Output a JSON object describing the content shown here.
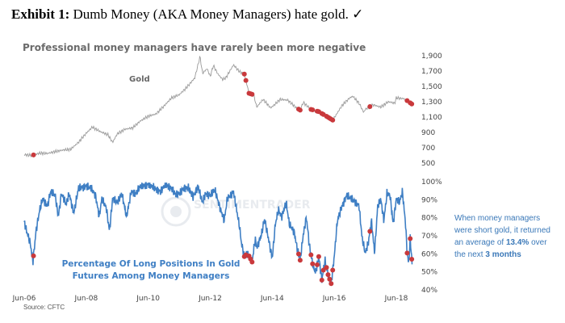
{
  "header": {
    "exhibit_label": "Exhibit 1:",
    "exhibit_text": "Dumb Money (AKA Money Managers) hate gold.",
    "check_mark": "✓"
  },
  "chart": {
    "title": "Professional money managers have rarely been more negative",
    "gold_label": "Gold",
    "position_label_line1": "Percentage Of Long Positions In Gold",
    "position_label_line2": "Futures Among Money Managers",
    "watermark": "SENTIMENTRADER",
    "source": "Source: CFTC",
    "annotation": {
      "line1": "When money managers",
      "line2_a": "were short gold, it returned",
      "line3_a": "an average of ",
      "line3_b": "13.4%",
      "line3_c": " over",
      "line4_a": "the next ",
      "line4_b": "3 months"
    }
  },
  "chart_data": {
    "type": "line",
    "title": "Professional money managers have rarely been more negative",
    "x_tick_labels": [
      "Jun-06",
      "Jun-08",
      "Jun-10",
      "Jun-12",
      "Jun-14",
      "Jun-16",
      "Jun-18"
    ],
    "x_range": [
      2006.0,
      2018.6
    ],
    "upper_axis": {
      "label": "Gold",
      "ylim": [
        500,
        1900
      ],
      "ticks": [
        "1,900",
        "1,700",
        "1,500",
        "1,300",
        "1,100",
        "900",
        "700",
        "500"
      ]
    },
    "lower_axis": {
      "label": "Percentage Of Long Positions In Gold Futures Among Money Managers",
      "ylim": [
        40,
        100
      ],
      "ticks": [
        "100%",
        "90%",
        "80%",
        "70%",
        "60%",
        "50%",
        "40%"
      ]
    },
    "series": [
      {
        "name": "Gold",
        "points": [
          [
            2006.0,
            600
          ],
          [
            2006.25,
            590
          ],
          [
            2006.5,
            620
          ],
          [
            2006.75,
            615
          ],
          [
            2007.0,
            640
          ],
          [
            2007.25,
            660
          ],
          [
            2007.5,
            670
          ],
          [
            2007.75,
            760
          ],
          [
            2008.0,
            880
          ],
          [
            2008.2,
            960
          ],
          [
            2008.45,
            900
          ],
          [
            2008.7,
            860
          ],
          [
            2008.85,
            760
          ],
          [
            2009.0,
            870
          ],
          [
            2009.25,
            930
          ],
          [
            2009.5,
            950
          ],
          [
            2009.75,
            1040
          ],
          [
            2010.0,
            1100
          ],
          [
            2010.25,
            1130
          ],
          [
            2010.5,
            1230
          ],
          [
            2010.75,
            1340
          ],
          [
            2011.0,
            1380
          ],
          [
            2011.25,
            1480
          ],
          [
            2011.5,
            1600
          ],
          [
            2011.6,
            1760
          ],
          [
            2011.67,
            1880
          ],
          [
            2011.75,
            1660
          ],
          [
            2011.9,
            1720
          ],
          [
            2012.0,
            1620
          ],
          [
            2012.1,
            1760
          ],
          [
            2012.25,
            1650
          ],
          [
            2012.4,
            1580
          ],
          [
            2012.5,
            1600
          ],
          [
            2012.75,
            1770
          ],
          [
            2012.95,
            1680
          ],
          [
            2013.1,
            1650
          ],
          [
            2013.25,
            1400
          ],
          [
            2013.4,
            1380
          ],
          [
            2013.5,
            1220
          ],
          [
            2013.7,
            1320
          ],
          [
            2013.95,
            1210
          ],
          [
            2014.1,
            1260
          ],
          [
            2014.25,
            1320
          ],
          [
            2014.5,
            1310
          ],
          [
            2014.75,
            1220
          ],
          [
            2014.9,
            1180
          ],
          [
            2015.0,
            1280
          ],
          [
            2015.25,
            1190
          ],
          [
            2015.5,
            1160
          ],
          [
            2015.75,
            1100
          ],
          [
            2015.95,
            1050
          ],
          [
            2016.0,
            1080
          ],
          [
            2016.25,
            1240
          ],
          [
            2016.5,
            1340
          ],
          [
            2016.6,
            1360
          ],
          [
            2016.8,
            1270
          ],
          [
            2016.95,
            1150
          ],
          [
            2017.0,
            1190
          ],
          [
            2017.25,
            1250
          ],
          [
            2017.5,
            1220
          ],
          [
            2017.75,
            1290
          ],
          [
            2017.95,
            1270
          ],
          [
            2018.0,
            1340
          ],
          [
            2018.25,
            1330
          ],
          [
            2018.4,
            1290
          ],
          [
            2018.5,
            1260
          ]
        ]
      },
      {
        "name": "Percentage Of Long Positions In Gold Futures Among Money Managers",
        "points": [
          [
            2006.0,
            77
          ],
          [
            2006.08,
            72
          ],
          [
            2006.2,
            65
          ],
          [
            2006.28,
            55
          ],
          [
            2006.38,
            72
          ],
          [
            2006.5,
            84
          ],
          [
            2006.6,
            90
          ],
          [
            2006.75,
            86
          ],
          [
            2006.85,
            94
          ],
          [
            2007.0,
            92
          ],
          [
            2007.1,
            80
          ],
          [
            2007.2,
            93
          ],
          [
            2007.35,
            87
          ],
          [
            2007.45,
            93
          ],
          [
            2007.6,
            82
          ],
          [
            2007.75,
            96
          ],
          [
            2008.0,
            97
          ],
          [
            2008.15,
            96
          ],
          [
            2008.3,
            92
          ],
          [
            2008.42,
            80
          ],
          [
            2008.5,
            90
          ],
          [
            2008.65,
            85
          ],
          [
            2008.75,
            72
          ],
          [
            2008.85,
            90
          ],
          [
            2009.0,
            88
          ],
          [
            2009.15,
            93
          ],
          [
            2009.3,
            80
          ],
          [
            2009.45,
            94
          ],
          [
            2009.6,
            93
          ],
          [
            2009.75,
            97
          ],
          [
            2010.0,
            98
          ],
          [
            2010.2,
            96
          ],
          [
            2010.4,
            94
          ],
          [
            2010.55,
            98
          ],
          [
            2010.75,
            96
          ],
          [
            2010.9,
            92
          ],
          [
            2011.0,
            93
          ],
          [
            2011.15,
            96
          ],
          [
            2011.3,
            96
          ],
          [
            2011.45,
            91
          ],
          [
            2011.6,
            97
          ],
          [
            2011.75,
            88
          ],
          [
            2011.85,
            93
          ],
          [
            2012.0,
            92
          ],
          [
            2012.15,
            95
          ],
          [
            2012.3,
            86
          ],
          [
            2012.45,
            78
          ],
          [
            2012.55,
            90
          ],
          [
            2012.75,
            94
          ],
          [
            2012.85,
            84
          ],
          [
            2012.95,
            74
          ],
          [
            2013.0,
            66
          ],
          [
            2013.1,
            58
          ],
          [
            2013.2,
            60
          ],
          [
            2013.35,
            55
          ],
          [
            2013.45,
            68
          ],
          [
            2013.5,
            63
          ],
          [
            2013.65,
            70
          ],
          [
            2013.75,
            79
          ],
          [
            2013.9,
            66
          ],
          [
            2014.0,
            57
          ],
          [
            2014.1,
            76
          ],
          [
            2014.2,
            84
          ],
          [
            2014.3,
            80
          ],
          [
            2014.45,
            88
          ],
          [
            2014.55,
            76
          ],
          [
            2014.7,
            72
          ],
          [
            2014.8,
            63
          ],
          [
            2014.9,
            56
          ],
          [
            2015.0,
            70
          ],
          [
            2015.1,
            80
          ],
          [
            2015.2,
            64
          ],
          [
            2015.3,
            54
          ],
          [
            2015.4,
            49
          ],
          [
            2015.5,
            58
          ],
          [
            2015.6,
            45
          ],
          [
            2015.7,
            56
          ],
          [
            2015.8,
            48
          ],
          [
            2015.9,
            43
          ],
          [
            2016.0,
            58
          ],
          [
            2016.1,
            78
          ],
          [
            2016.25,
            86
          ],
          [
            2016.4,
            92
          ],
          [
            2016.55,
            90
          ],
          [
            2016.7,
            88
          ],
          [
            2016.8,
            86
          ],
          [
            2016.9,
            68
          ],
          [
            2017.0,
            60
          ],
          [
            2017.1,
            66
          ],
          [
            2017.2,
            78
          ],
          [
            2017.3,
            60
          ],
          [
            2017.4,
            86
          ],
          [
            2017.5,
            90
          ],
          [
            2017.6,
            78
          ],
          [
            2017.7,
            93
          ],
          [
            2017.8,
            92
          ],
          [
            2017.9,
            76
          ],
          [
            2018.0,
            90
          ],
          [
            2018.1,
            88
          ],
          [
            2018.2,
            94
          ],
          [
            2018.3,
            76
          ],
          [
            2018.35,
            60
          ],
          [
            2018.4,
            54
          ],
          [
            2018.45,
            68
          ],
          [
            2018.52,
            52
          ]
        ]
      }
    ],
    "short_signal_dates": [
      2006.3,
      2013.1,
      2013.15,
      2013.25,
      2013.3,
      2013.35,
      2014.85,
      2014.9,
      2015.25,
      2015.3,
      2015.45,
      2015.5,
      2015.6,
      2015.65,
      2015.75,
      2015.8,
      2015.85,
      2015.9,
      2015.95,
      2017.15,
      2018.35,
      2018.45,
      2018.5
    ]
  }
}
